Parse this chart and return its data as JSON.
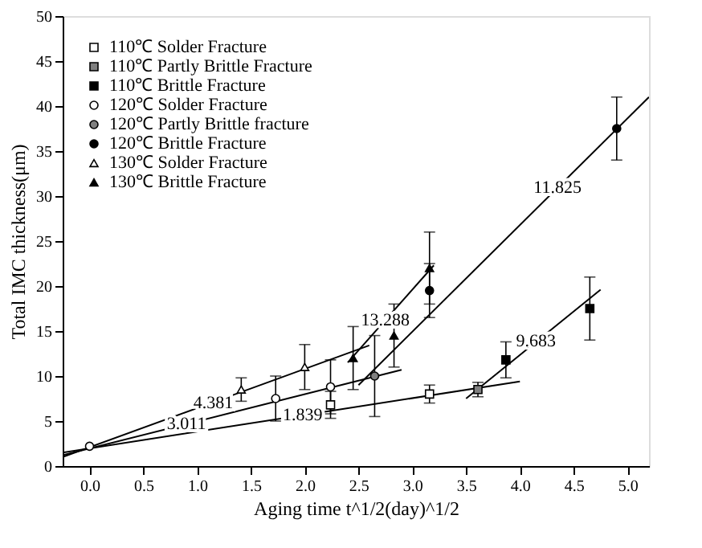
{
  "chart_data": {
    "type": "scatter",
    "xlabel": "Aging time t^1/2(day)^1/2",
    "ylabel": "Total IMC thickness(μm)",
    "xlim": [
      -0.25,
      5.2
    ],
    "xticks": [
      {
        "value": 0,
        "label": "0.0"
      },
      0.5,
      {
        "value": 1,
        "label": "1.0"
      },
      1.5,
      {
        "value": 2,
        "label": "2.0"
      },
      2.5,
      {
        "value": 3,
        "label": "3.0"
      },
      3.5,
      {
        "value": 4,
        "label": "4.0"
      },
      4.5,
      {
        "value": 5,
        "label": "5.0"
      }
    ],
    "ylim": [
      0,
      50
    ],
    "yticks": [
      0,
      5,
      10,
      15,
      20,
      25,
      30,
      35,
      40,
      45,
      50
    ],
    "grid": false,
    "legend": "top left",
    "series": [
      {
        "name": "110℃ Solder Fracture",
        "marker": "square",
        "color": "#ffffff",
        "x": [
          2.24,
          3.16
        ],
        "values": [
          6.8,
          8.0
        ],
        "errors": [
          1.5,
          1.0
        ]
      },
      {
        "name": "110℃ Partly Brittle Fracture",
        "marker": "square",
        "color": "#808080",
        "x": [
          3.61
        ],
        "values": [
          8.5
        ],
        "errors": [
          0.8
        ]
      },
      {
        "name": "110℃ Brittle Fracture",
        "marker": "square",
        "color": "#000000",
        "x": [
          3.87,
          4.65
        ],
        "values": [
          11.8,
          17.5
        ],
        "errors": [
          2.0,
          3.5
        ]
      },
      {
        "name": "120℃ Solder Fracture",
        "marker": "circle",
        "color": "#ffffff",
        "x": [
          0,
          1.73,
          2.24
        ],
        "values": [
          2.2,
          7.5,
          8.8
        ],
        "errors": [
          null,
          2.5,
          3.0
        ]
      },
      {
        "name": "120℃ Partly Brittle fracture",
        "marker": "circle",
        "color": "#808080",
        "x": [
          2.65
        ],
        "values": [
          10.0
        ],
        "errors": [
          4.5
        ]
      },
      {
        "name": "120℃ Brittle Fracture",
        "marker": "circle",
        "color": "#000000",
        "x": [
          3.16,
          4.9
        ],
        "values": [
          19.5,
          37.5
        ],
        "errors": [
          3.0,
          3.5
        ]
      },
      {
        "name": "130℃ Solder Fracture",
        "marker": "triangle",
        "color": "#ffffff",
        "x": [
          1.41,
          2.0
        ],
        "values": [
          8.5,
          11.0
        ],
        "errors": [
          1.3,
          2.5
        ]
      },
      {
        "name": "130℃ Brittle Fracture",
        "marker": "triangle",
        "color": "#000000",
        "x": [
          2.45,
          2.83,
          3.16
        ],
        "values": [
          12.0,
          14.5,
          22.0
        ],
        "errors": [
          3.5,
          3.5,
          4.0
        ]
      },
      {
        "type": "line",
        "color": "#000000",
        "x": [
          -0.25,
          4.0
        ],
        "values": [
          1.5,
          9.4
        ]
      },
      {
        "type": "line",
        "color": "#000000",
        "x": [
          -0.25,
          2.9
        ],
        "values": [
          1.2,
          10.7
        ]
      },
      {
        "type": "line",
        "color": "#000000",
        "x": [
          -0.25,
          2.6
        ],
        "values": [
          1.0,
          13.4
        ]
      },
      {
        "type": "line",
        "color": "#000000",
        "x": [
          2.4,
          3.2
        ],
        "values": [
          11.5,
          22.3
        ]
      },
      {
        "type": "line",
        "color": "#000000",
        "x": [
          2.5,
          5.2
        ],
        "values": [
          9.0,
          41.0
        ]
      },
      {
        "type": "line",
        "color": "#000000",
        "x": [
          3.5,
          4.75
        ],
        "values": [
          7.5,
          19.6
        ]
      }
    ],
    "annotations": [
      {
        "text": "1.839",
        "x": 1.98,
        "y": 5.65
      },
      {
        "text": "3.011",
        "x": 0.9,
        "y": 4.67
      },
      {
        "text": "4.381",
        "x": 1.15,
        "y": 7.0
      },
      {
        "text": "13.288",
        "x": 2.75,
        "y": 16.2
      },
      {
        "text": "11.825",
        "x": 4.35,
        "y": 30.9
      },
      {
        "text": "9.683",
        "x": 4.15,
        "y": 13.8
      }
    ]
  }
}
